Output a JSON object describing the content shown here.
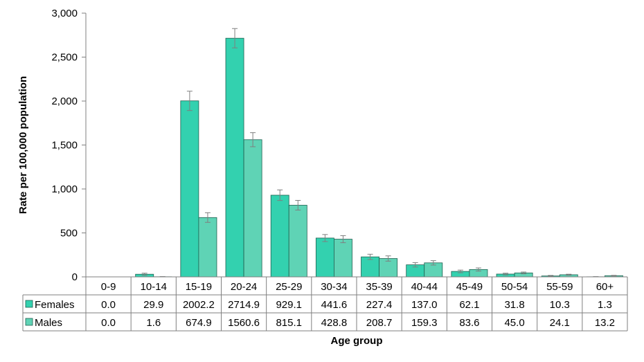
{
  "chart_data": {
    "type": "bar",
    "title": "",
    "xlabel": "Age group",
    "ylabel": "Rate per 100,000 population",
    "ylim": [
      0,
      3000
    ],
    "yticks": [
      "0",
      "500",
      "1,000",
      "1,500",
      "2,000",
      "2,500",
      "3,000"
    ],
    "ytick_values": [
      0,
      500,
      1000,
      1500,
      2000,
      2500,
      3000
    ],
    "grid": false,
    "legend": "data-table-left",
    "categories": [
      "0-9",
      "10-14",
      "15-19",
      "20-24",
      "25-29",
      "30-34",
      "35-39",
      "40-44",
      "45-49",
      "50-54",
      "55-59",
      "60+"
    ],
    "series": [
      {
        "name": "Females",
        "color": "#33D1AF",
        "values": [
          0.0,
          29.9,
          2002.2,
          2714.9,
          929.1,
          441.6,
          227.4,
          137.0,
          62.1,
          31.8,
          10.3,
          1.3
        ],
        "labels": [
          "0.0",
          "29.9",
          "2002.2",
          "2714.9",
          "929.1",
          "441.6",
          "227.4",
          "137.0",
          "62.1",
          "31.8",
          "10.3",
          "1.3"
        ],
        "error": [
          0,
          12,
          110,
          110,
          60,
          40,
          30,
          25,
          15,
          10,
          6,
          2
        ]
      },
      {
        "name": "Males",
        "color": "#5FD3B5",
        "values": [
          0.0,
          1.6,
          674.9,
          1560.6,
          815.1,
          428.8,
          208.7,
          159.3,
          83.6,
          45.0,
          24.1,
          13.2
        ],
        "labels": [
          "0.0",
          "1.6",
          "674.9",
          "1560.6",
          "815.1",
          "428.8",
          "208.7",
          "159.3",
          "83.6",
          "45.0",
          "24.1",
          "13.2"
        ],
        "error": [
          0,
          2,
          55,
          80,
          55,
          40,
          30,
          25,
          18,
          10,
          6,
          4
        ]
      }
    ]
  }
}
